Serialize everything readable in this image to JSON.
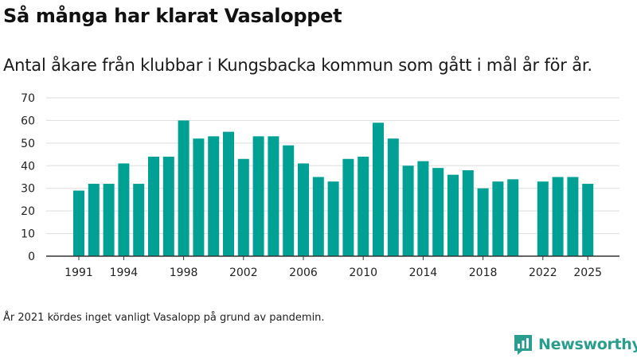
{
  "title": "Så många har klarat Vasaloppet",
  "subtitle": "Antal åkare från klubbar i Kungsbacka kommun som gått i mål år för år.",
  "footnote": "År 2021 kördes inget vanligt Vasalopp på grund av pandemin.",
  "brand": {
    "name": "Newsworthy",
    "icon": "newsworthy-logo-icon"
  },
  "colors": {
    "bar": "#00a195",
    "grid": "#dddddd",
    "axis": "#333333"
  },
  "chart_data": {
    "type": "bar",
    "title": "",
    "xlabel": "",
    "ylabel": "",
    "x": [
      1991,
      1992,
      1993,
      1994,
      1995,
      1996,
      1997,
      1998,
      1999,
      2000,
      2001,
      2002,
      2003,
      2004,
      2005,
      2006,
      2007,
      2008,
      2009,
      2010,
      2011,
      2012,
      2013,
      2014,
      2015,
      2016,
      2017,
      2018,
      2019,
      2020,
      2021,
      2022,
      2023,
      2024,
      2025
    ],
    "values": [
      29,
      32,
      32,
      41,
      32,
      44,
      44,
      60,
      52,
      53,
      55,
      43,
      53,
      53,
      49,
      41,
      35,
      33,
      43,
      44,
      59,
      52,
      40,
      42,
      39,
      36,
      38,
      30,
      33,
      34,
      null,
      33,
      35,
      35,
      32
    ],
    "xticks": [
      "1991",
      "1994",
      "1998",
      "2002",
      "2006",
      "2010",
      "2014",
      "2018",
      "2022",
      "2025"
    ],
    "yticks": [
      0,
      10,
      20,
      30,
      40,
      50,
      60,
      70
    ],
    "ylim": [
      0,
      70
    ],
    "grid": true,
    "legend": "none"
  }
}
